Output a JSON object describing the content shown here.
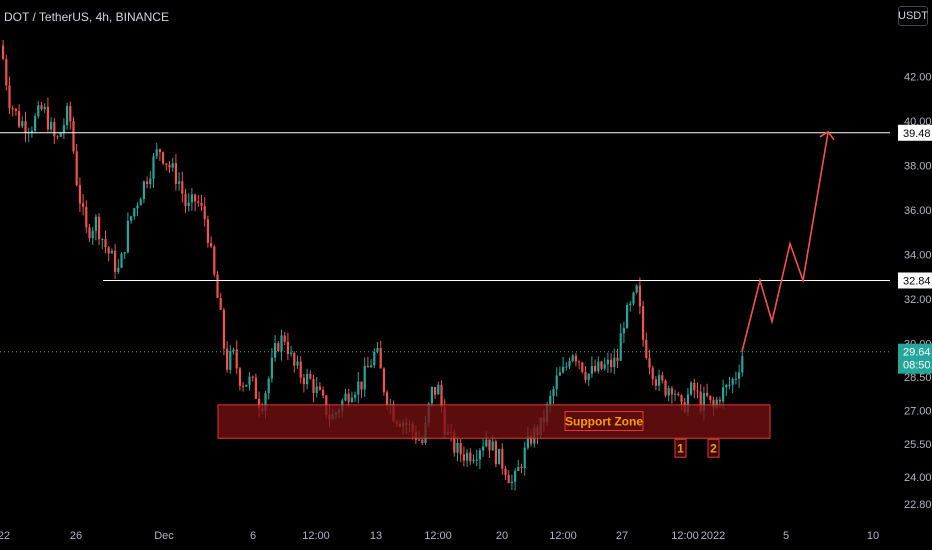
{
  "header": {
    "title": "DOT / TetherUS, 4h, BINANCE",
    "currency_button": "USDT"
  },
  "colors": {
    "background": "#000000",
    "up": "#26a69a",
    "down": "#ef5350",
    "projection": "#ef5350",
    "level_line": "#ffffff",
    "support_fill": "#7a1010",
    "support_border": "#e53935",
    "support_text": "#ff9800",
    "last_price_bg": "#26a69a"
  },
  "chart_data": {
    "type": "candlestick",
    "y_ticks": [
      "42.00",
      "40.00",
      "38.00",
      "36.00",
      "34.00",
      "32.00",
      "30.00",
      "28.50",
      "27.00",
      "25.50",
      "24.00",
      "22.80"
    ],
    "x_ticks": [
      "22",
      "26",
      "Dec",
      "6",
      "12:00",
      "13",
      "12:00",
      "20",
      "12:00",
      "27",
      "12:00",
      "2022",
      "5",
      "10"
    ],
    "ylim": [
      22.3,
      44.8
    ],
    "x_range": [
      "Nov 22",
      "Jan 10"
    ],
    "grid": false,
    "price_path": [
      [
        0,
        43.4
      ],
      [
        8,
        41.0
      ],
      [
        18,
        40.0
      ],
      [
        30,
        39.8
      ],
      [
        42,
        40.6
      ],
      [
        55,
        39.0
      ],
      [
        68,
        40.5
      ],
      [
        76,
        37.2
      ],
      [
        85,
        35.0
      ],
      [
        95,
        35.5
      ],
      [
        105,
        34.3
      ],
      [
        118,
        33.2
      ],
      [
        128,
        35.5
      ],
      [
        142,
        37.1
      ],
      [
        158,
        38.8
      ],
      [
        168,
        38.0
      ],
      [
        178,
        37.3
      ],
      [
        186,
        36.0
      ],
      [
        195,
        36.5
      ],
      [
        205,
        35.5
      ],
      [
        212,
        33.3
      ],
      [
        220,
        31.0
      ],
      [
        225,
        29.0
      ],
      [
        232,
        29.5
      ],
      [
        240,
        28.3
      ],
      [
        250,
        28.3
      ],
      [
        260,
        27.2
      ],
      [
        268,
        28.5
      ],
      [
        276,
        30.0
      ],
      [
        284,
        30.3
      ],
      [
        292,
        29.0
      ],
      [
        300,
        28.6
      ],
      [
        310,
        28.3
      ],
      [
        320,
        27.5
      ],
      [
        330,
        26.6
      ],
      [
        340,
        27.3
      ],
      [
        350,
        28.0
      ],
      [
        360,
        28.2
      ],
      [
        368,
        29.0
      ],
      [
        375,
        29.7
      ],
      [
        383,
        28.0
      ],
      [
        393,
        26.8
      ],
      [
        403,
        26.5
      ],
      [
        413,
        26.0
      ],
      [
        422,
        25.5
      ],
      [
        430,
        27.8
      ],
      [
        437,
        28.0
      ],
      [
        445,
        26.0
      ],
      [
        455,
        25.2
      ],
      [
        465,
        25.0
      ],
      [
        475,
        25.2
      ],
      [
        485,
        25.8
      ],
      [
        495,
        25.0
      ],
      [
        505,
        24.4
      ],
      [
        512,
        23.6
      ],
      [
        520,
        24.7
      ],
      [
        530,
        25.8
      ],
      [
        540,
        26.3
      ],
      [
        548,
        27.3
      ],
      [
        556,
        28.4
      ],
      [
        564,
        28.8
      ],
      [
        570,
        29.8
      ],
      [
        578,
        29.3
      ],
      [
        586,
        28.6
      ],
      [
        596,
        28.8
      ],
      [
        606,
        29.0
      ],
      [
        616,
        29.2
      ],
      [
        622,
        31.0
      ],
      [
        630,
        31.6
      ],
      [
        636,
        32.4
      ],
      [
        642,
        30.2
      ],
      [
        648,
        29.3
      ],
      [
        656,
        28.3
      ],
      [
        664,
        28.0
      ],
      [
        672,
        28.2
      ],
      [
        680,
        26.9
      ],
      [
        686,
        27.6
      ],
      [
        692,
        28.0
      ],
      [
        700,
        27.3
      ],
      [
        706,
        27.5
      ],
      [
        712,
        27.0
      ],
      [
        718,
        27.7
      ],
      [
        726,
        28.0
      ],
      [
        734,
        28.5
      ],
      [
        742,
        29.64
      ]
    ],
    "levels": [
      {
        "value": 39.48,
        "label": "39.48"
      },
      {
        "value": 32.84,
        "label": "32.84"
      }
    ],
    "last_price": {
      "value": 29.64,
      "label": "29.64",
      "countdown": "08:50"
    },
    "projection": [
      [
        742,
        29.64
      ],
      [
        760,
        32.84
      ],
      [
        772,
        31.0
      ],
      [
        790,
        34.5
      ],
      [
        803,
        32.84
      ],
      [
        828,
        39.48
      ]
    ],
    "support_zone": {
      "low": 25.75,
      "high": 27.25,
      "label": "Support Zone"
    },
    "annotations": [
      {
        "label": "1",
        "value": 25.3
      },
      {
        "label": "2",
        "value": 25.3
      }
    ]
  }
}
